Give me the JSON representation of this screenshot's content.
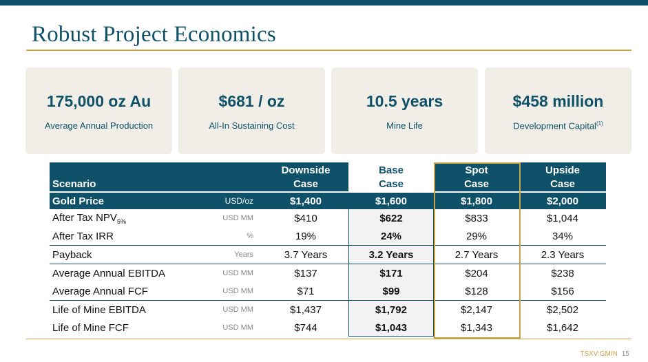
{
  "title": "Robust Project Economics",
  "cards": [
    {
      "value": "175,000 oz Au",
      "label": "Average Annual Production",
      "note": ""
    },
    {
      "value": "$681 / oz",
      "label": "All-In Sustaining Cost",
      "note": ""
    },
    {
      "value": "10.5 years",
      "label": "Mine Life",
      "note": ""
    },
    {
      "value": "$458 million",
      "label": "Development Capital",
      "note": "(1)"
    }
  ],
  "table": {
    "header": {
      "scenario": "Scenario",
      "downside_1": "Downside",
      "downside_2": "Case",
      "base_1": "Base",
      "base_2": "Case",
      "spot_1": "Spot",
      "spot_2": "Case",
      "upside_1": "Upside",
      "upside_2": "Case"
    },
    "gold_price": {
      "label": "Gold Price",
      "unit": "USD/oz",
      "values": [
        "$1,400",
        "$1,600",
        "$1,800",
        "$2,000"
      ]
    },
    "rows": [
      {
        "label": "After Tax NPV",
        "sub": "5%",
        "unit": "USD MM",
        "values": [
          "$410",
          "$622",
          "$833",
          "$1,044"
        ]
      },
      {
        "label": "After Tax IRR",
        "sub": "",
        "unit": "%",
        "values": [
          "19%",
          "24%",
          "29%",
          "34%"
        ]
      },
      {
        "label": "Payback",
        "sub": "",
        "unit": "Years",
        "values": [
          "3.7 Years",
          "3.2 Years",
          "2.7 Years",
          "2.3 Years"
        ]
      },
      {
        "label": "Average Annual EBITDA",
        "sub": "",
        "unit": "USD MM",
        "values": [
          "$137",
          "$171",
          "$204",
          "$238"
        ]
      },
      {
        "label": "Average Annual FCF",
        "sub": "",
        "unit": "USD MM",
        "values": [
          "$71",
          "$99",
          "$128",
          "$156"
        ]
      },
      {
        "label": "Life of Mine EBITDA",
        "sub": "",
        "unit": "USD MM",
        "values": [
          "$1,437",
          "$1,792",
          "$2,147",
          "$2,502"
        ]
      },
      {
        "label": "Life of Mine FCF",
        "sub": "",
        "unit": "USD MM",
        "values": [
          "$744",
          "$1,043",
          "$1,343",
          "$1,642"
        ]
      }
    ]
  },
  "footer": {
    "ticker": "TSXV:GMIN",
    "page": "15"
  }
}
